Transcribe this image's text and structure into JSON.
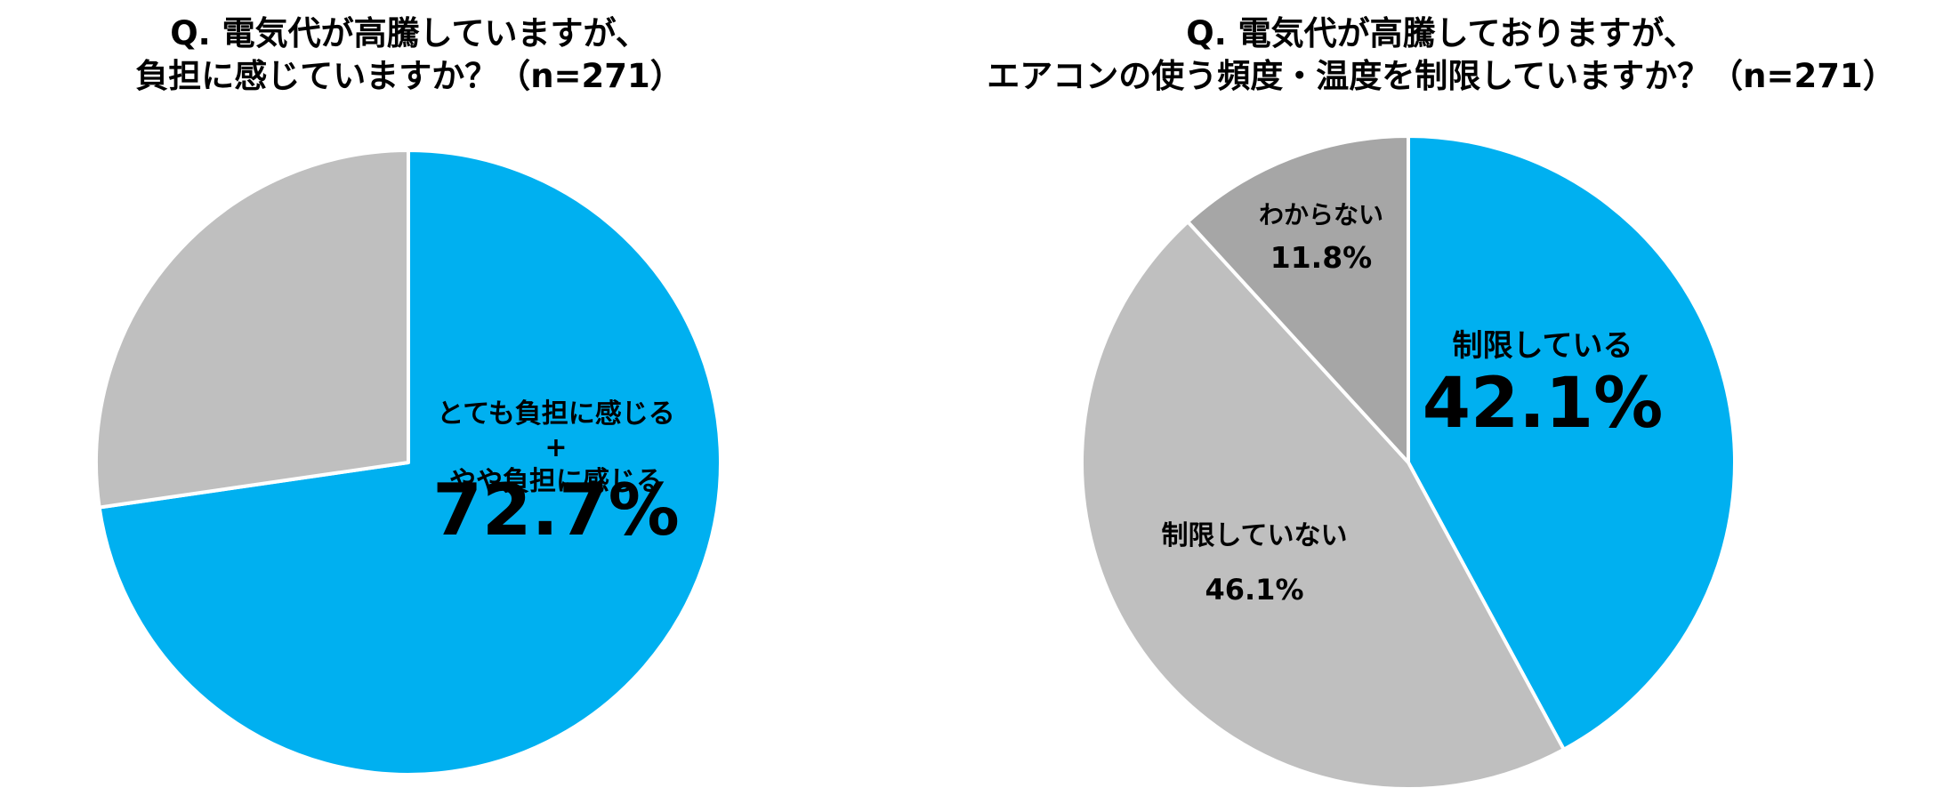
{
  "chart_data": [
    {
      "type": "pie",
      "title_lines": [
        "Q. 電気代が高騰していますが、",
        "負担に感じていますか？（n=271）"
      ],
      "slices": [
        {
          "label_lines": [
            "とても負担に感じる",
            "+",
            "やや負担に感じる"
          ],
          "value": 72.7,
          "value_label": "72.7%",
          "color": "#00B0F0"
        },
        {
          "label_lines": [],
          "value": 27.3,
          "value_label": "",
          "color": "#BFBFBF"
        }
      ]
    },
    {
      "type": "pie",
      "title_lines": [
        "Q. 電気代が高騰しておりますが、",
        "エアコンの使う頻度・温度を制限していますか？（n=271）"
      ],
      "slices": [
        {
          "label_lines": [
            "制限している"
          ],
          "value": 42.1,
          "value_label": "42.1%",
          "color": "#00B0F0"
        },
        {
          "label_lines": [
            "制限していない"
          ],
          "value": 46.1,
          "value_label": "46.1%",
          "color": "#BFBFBF"
        },
        {
          "label_lines": [
            "わからない"
          ],
          "value": 11.8,
          "value_label": "11.8%",
          "color": "#A6A6A6"
        }
      ]
    }
  ]
}
